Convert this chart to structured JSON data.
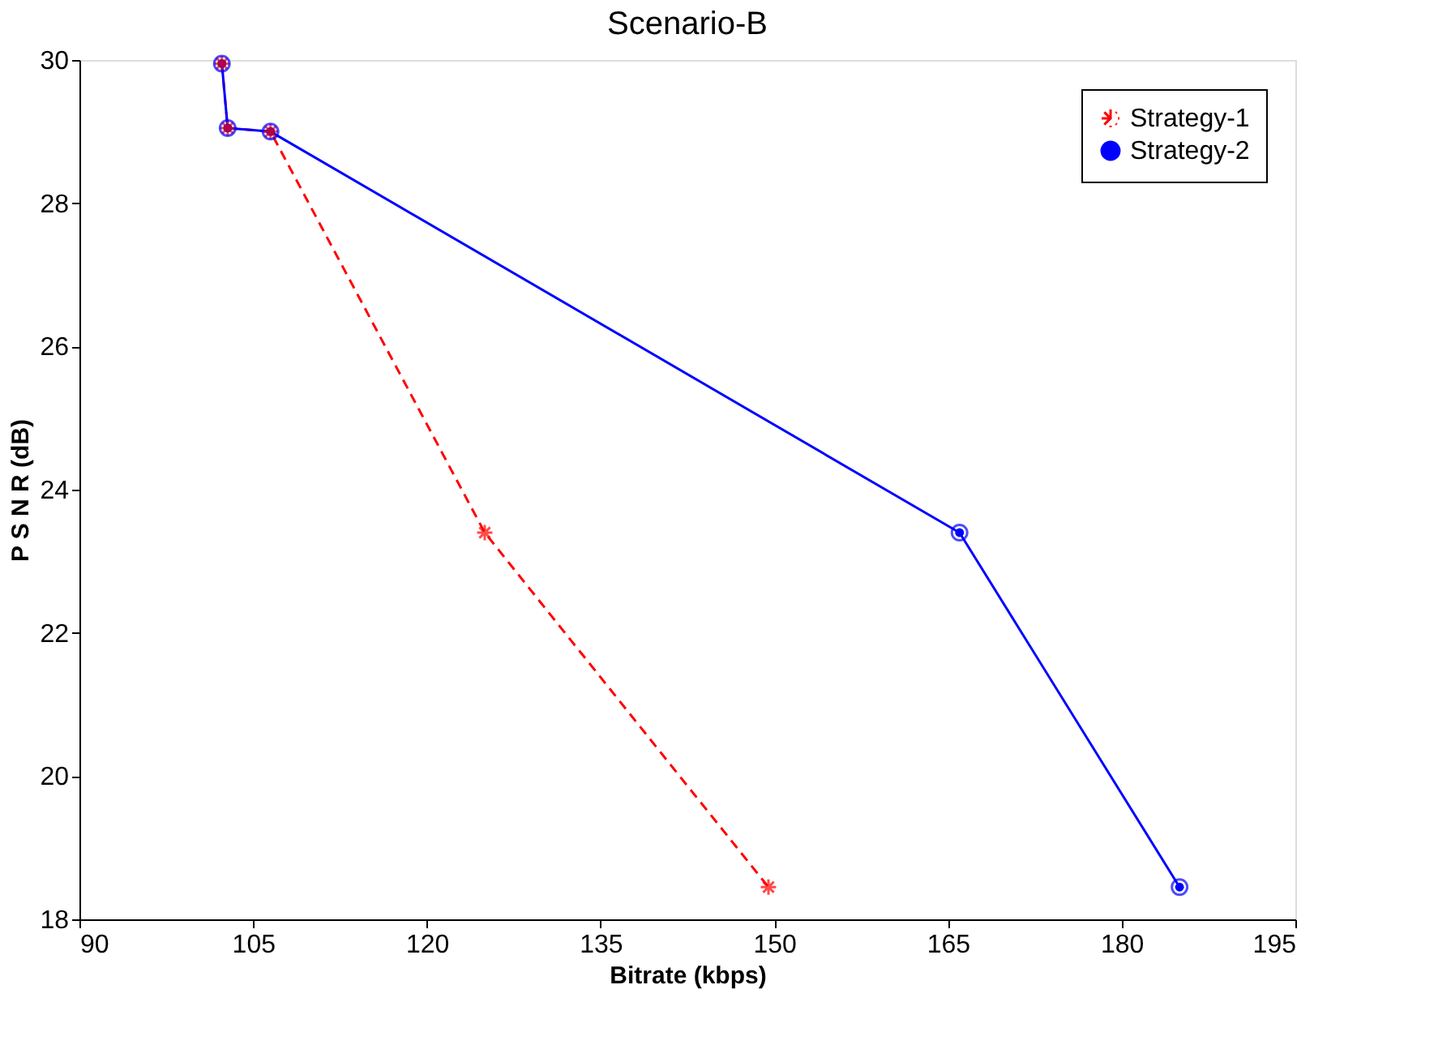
{
  "chart_data": {
    "type": "line",
    "title": "Scenario-B",
    "xlabel": "Bitrate (kbps)",
    "ylabel": "P S N R (dB)",
    "xlim": [
      90,
      195
    ],
    "xticks": [
      90,
      105,
      120,
      135,
      150,
      165,
      180,
      195
    ],
    "ylim": [
      18,
      30
    ],
    "yticks": [
      18,
      20,
      22,
      24,
      26,
      28,
      30
    ],
    "grid": false,
    "legend": "top right",
    "series": [
      {
        "name": "Strategy-1",
        "color": "#ff0000",
        "line_style": "dashed",
        "marker": "cross",
        "x": [
          102.3,
          102.8,
          106.5,
          125,
          149.5
        ],
        "values": [
          29.95,
          29.05,
          29.0,
          23.4,
          18.45
        ]
      },
      {
        "name": "Strategy-2",
        "color": "#0000ff",
        "line_style": "solid",
        "marker": "circle",
        "x": [
          102.3,
          102.8,
          106.5,
          166,
          185
        ],
        "values": [
          29.95,
          29.05,
          29.0,
          23.4,
          18.45
        ]
      }
    ]
  }
}
